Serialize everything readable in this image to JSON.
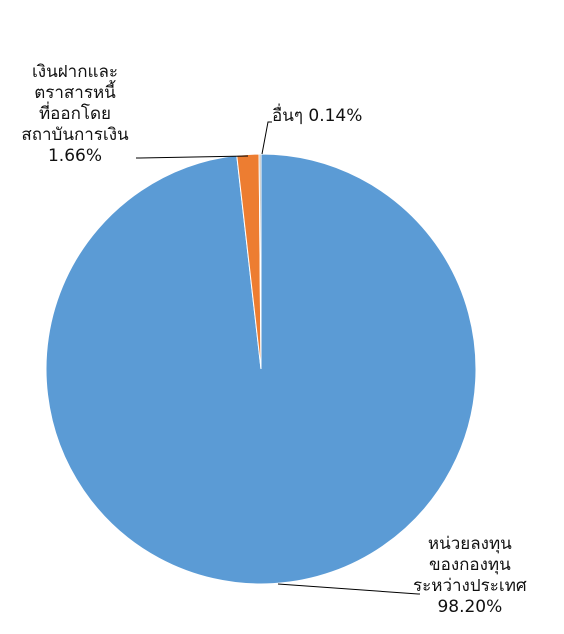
{
  "chart_data": {
    "type": "pie",
    "slices": [
      {
        "label_lines": [
          "หน่วยลงทุน",
          "ของกองทุน",
          "ระหว่างประเทศ"
        ],
        "value_text": "98.20%",
        "value": 98.2,
        "color": "#5B9BD5"
      },
      {
        "label_lines": [
          "เงินฝากและ",
          "ตราสารหนี้",
          "ที่ออกโดย",
          "สถาบันการเงิน"
        ],
        "value_text": "1.66%",
        "value": 1.66,
        "color": "#ED7D31"
      },
      {
        "label_lines": [
          "อื่นๆ"
        ],
        "value_text": "0.14%",
        "value": 0.14,
        "color": "#A5A5A5"
      }
    ]
  }
}
